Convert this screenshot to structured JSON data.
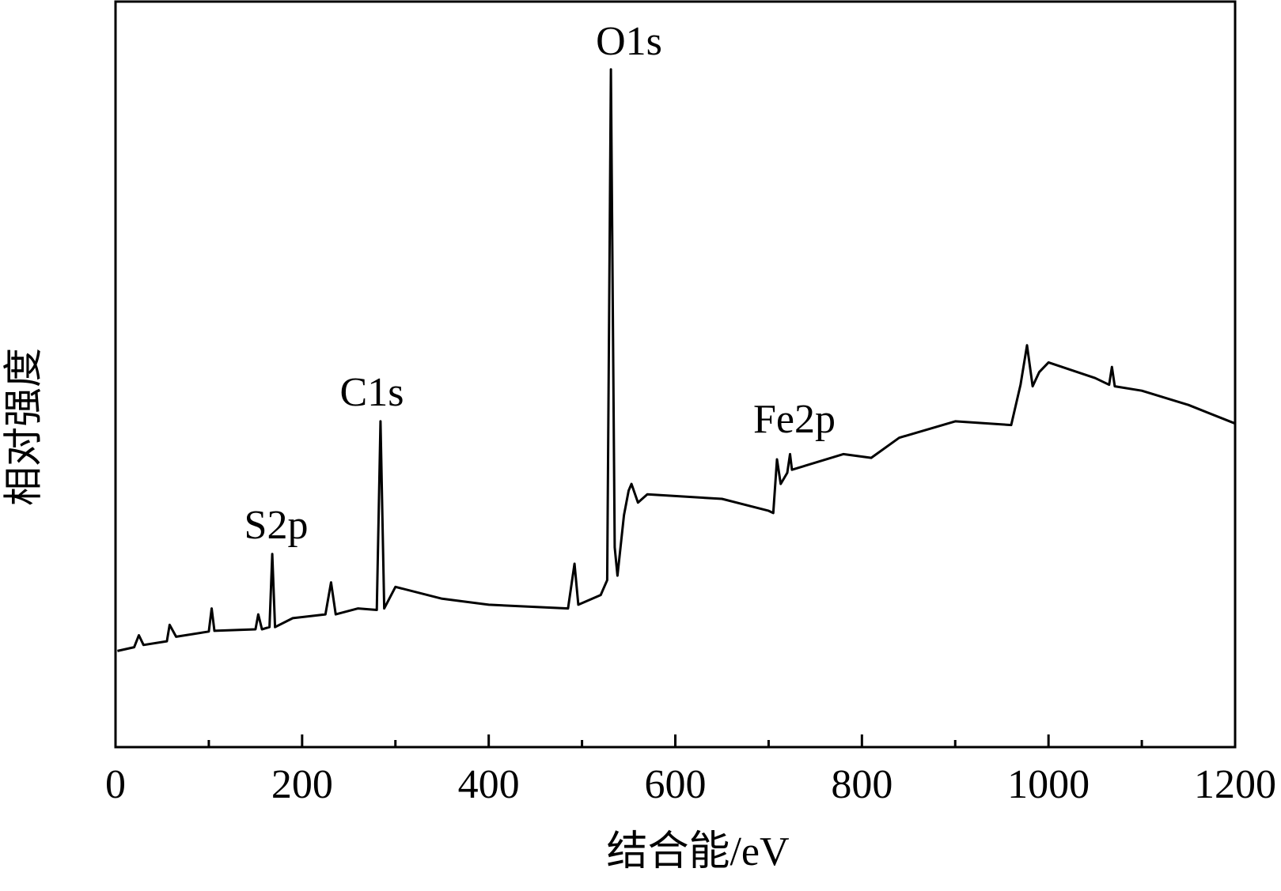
{
  "chart_data": {
    "type": "line",
    "xlabel": "结合能/eV",
    "ylabel": "相对强度",
    "annotations": [
      "O1s",
      "C1s",
      "S2p",
      "Fe2p"
    ],
    "xlim": [
      0,
      1200
    ],
    "xticks": [
      0,
      200,
      400,
      600,
      800,
      1000,
      1200
    ],
    "xminorticks": [
      100,
      300,
      500,
      700,
      900,
      1100
    ],
    "ylim": [
      0,
      100
    ],
    "series": [
      {
        "color": "#000000",
        "x": [
          2,
          20,
          25,
          30,
          55,
          58,
          65,
          100,
          103,
          106,
          150,
          153,
          157,
          165,
          168,
          171,
          190,
          225,
          231,
          236,
          260,
          280,
          284,
          288,
          300,
          350,
          400,
          485,
          492,
          496,
          520,
          527,
          531,
          535,
          538,
          545,
          550,
          553,
          560,
          570,
          650,
          700,
          705,
          709,
          713,
          720,
          723,
          725,
          780,
          810,
          840,
          900,
          960,
          970,
          977,
          983,
          990,
          1000,
          1050,
          1065,
          1068,
          1071,
          1100,
          1150,
          1200
        ],
        "values": [
          12.9,
          13.4,
          15.0,
          13.7,
          14.2,
          16.4,
          14.8,
          15.5,
          18.6,
          15.6,
          15.8,
          17.8,
          15.8,
          16.1,
          25.9,
          16.1,
          17.3,
          17.8,
          22.1,
          17.8,
          18.6,
          18.4,
          43.7,
          18.6,
          21.5,
          19.9,
          19.1,
          18.6,
          24.6,
          19.1,
          20.4,
          22.4,
          90.9,
          26.8,
          23.0,
          31.1,
          34.4,
          35.3,
          32.8,
          33.9,
          33.3,
          31.7,
          31.4,
          38.6,
          35.3,
          36.8,
          39.3,
          37.2,
          39.3,
          38.8,
          41.5,
          43.7,
          43.2,
          48.6,
          53.9,
          48.4,
          50.3,
          51.6,
          49.5,
          48.6,
          51.0,
          48.4,
          47.8,
          45.9,
          43.4
        ]
      }
    ]
  }
}
